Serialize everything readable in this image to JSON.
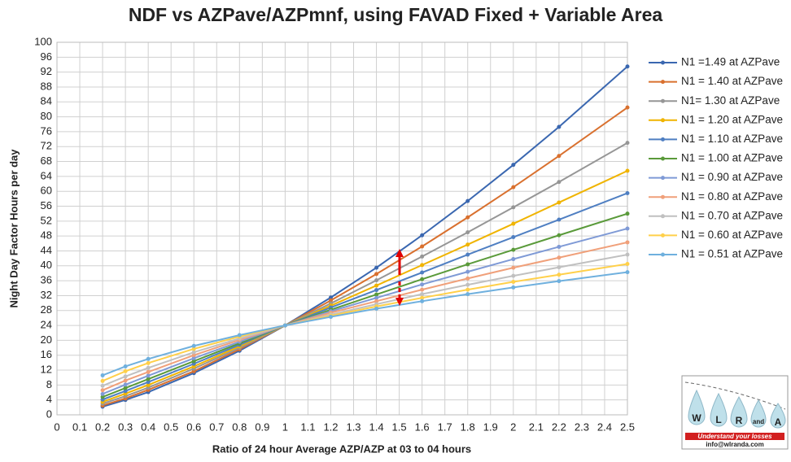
{
  "chart_data": {
    "type": "line",
    "title": "NDF vs AZPave/AZPmnf, using FAVAD Fixed + Variable Area",
    "x_label": "Ratio of 24 hour Average AZP/AZP at 03 to 04 hours",
    "y_label": "Night Day Factor Hours per day",
    "x": [
      0.2,
      0.3,
      0.4,
      0.6,
      0.8,
      1,
      1.2,
      1.4,
      1.6,
      1.8,
      2,
      2.2,
      2.5
    ],
    "xlim": [
      0,
      2.5
    ],
    "xticks": [
      0,
      0.1,
      0.2,
      0.3,
      0.4,
      0.5,
      0.6,
      0.7,
      0.8,
      0.9,
      1,
      1.1,
      1.2,
      1.3,
      1.4,
      1.5,
      1.6,
      1.7,
      1.8,
      1.9,
      2,
      2.1,
      2.2,
      2.3,
      2.4,
      2.5
    ],
    "ylim": [
      0,
      100
    ],
    "yticks": [
      0,
      4,
      8,
      12,
      16,
      20,
      24,
      28,
      32,
      36,
      40,
      44,
      48,
      52,
      56,
      60,
      64,
      68,
      72,
      76,
      80,
      84,
      88,
      92,
      96,
      100
    ],
    "grid": true,
    "legend": "right",
    "series": [
      {
        "name": "N1 =1.49 at AZPave",
        "color": "#3a67b0",
        "values": [
          2.2,
          4.0,
          6.1,
          11.2,
          17.2,
          24,
          31.5,
          39.5,
          48.2,
          57.4,
          67.1,
          77.3,
          93.5
        ]
      },
      {
        "name": "N1 = 1.40 at AZPave",
        "color": "#d9702e",
        "values": [
          2.5,
          4.4,
          6.7,
          11.7,
          17.6,
          24,
          30.7,
          37.8,
          45.2,
          53.0,
          61.1,
          69.5,
          82.5
        ]
      },
      {
        "name": "N1= 1.30 at AZPave",
        "color": "#969696",
        "values": [
          3.0,
          5.0,
          7.3,
          12.4,
          18.0,
          24,
          29.9,
          36.1,
          42.5,
          49.0,
          55.7,
          62.5,
          73.0
        ]
      },
      {
        "name": "N1 = 1.20 at AZPave",
        "color": "#f0b400",
        "values": [
          3.5,
          5.7,
          8.0,
          13.0,
          18.4,
          24,
          29.3,
          34.7,
          40.2,
          45.7,
          51.3,
          57.0,
          65.5
        ]
      },
      {
        "name": "N1 = 1.10 at AZPave",
        "color": "#4f7fc2",
        "values": [
          4.1,
          6.4,
          8.8,
          13.7,
          18.8,
          24,
          28.8,
          33.5,
          38.2,
          43.0,
          47.7,
          52.4,
          59.5
        ]
      },
      {
        "name": "N1 = 1.00 at AZPave",
        "color": "#5a9a3a",
        "values": [
          4.8,
          7.2,
          9.6,
          14.4,
          19.2,
          24,
          28.2,
          32.3,
          36.4,
          40.4,
          44.3,
          48.2,
          54.0
        ]
      },
      {
        "name": "N1 = 0.90 at AZPave",
        "color": "#7f9ad6",
        "values": [
          5.6,
          8.1,
          10.5,
          15.2,
          19.6,
          24,
          27.8,
          31.4,
          35.0,
          38.4,
          41.8,
          45.1,
          50.0
        ]
      },
      {
        "name": "N1 = 0.80 at AZPave",
        "color": "#f0a07a",
        "values": [
          6.6,
          9.2,
          11.5,
          16.0,
          20.1,
          24,
          27.4,
          30.5,
          33.6,
          36.6,
          39.5,
          42.2,
          46.3
        ]
      },
      {
        "name": "N1 = 0.70 at AZPave",
        "color": "#c0c0c0",
        "values": [
          7.8,
          10.3,
          12.6,
          16.8,
          20.5,
          24,
          26.9,
          29.7,
          32.4,
          34.9,
          37.3,
          39.6,
          43.0
        ]
      },
      {
        "name": "N1 = 0.60 at AZPave",
        "color": "#ffd04a",
        "values": [
          9.1,
          11.7,
          13.9,
          17.7,
          21.0,
          24,
          26.6,
          29.1,
          31.4,
          33.6,
          35.7,
          37.6,
          40.5
        ]
      },
      {
        "name": "N1 = 0.51 at AZPave",
        "color": "#6fb0de",
        "values": [
          10.6,
          13.0,
          15.0,
          18.5,
          21.4,
          24,
          26.3,
          28.5,
          30.5,
          32.4,
          34.2,
          35.9,
          38.3
        ]
      }
    ]
  },
  "logo": {
    "letters": [
      "W",
      "L",
      "R",
      "and",
      "A"
    ],
    "tagline": "Understand your losses",
    "email": "info@wlranda.com"
  }
}
